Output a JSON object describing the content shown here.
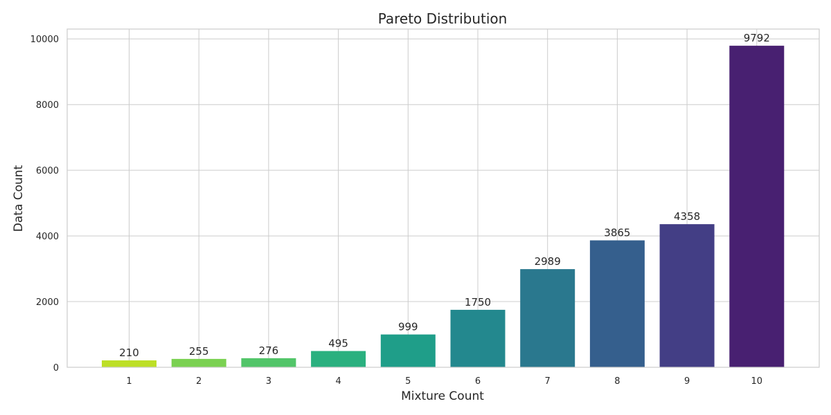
{
  "chart_data": {
    "type": "bar",
    "title": "Pareto Distribution",
    "xlabel": "Mixture Count",
    "ylabel": "Data Count",
    "categories": [
      "1",
      "2",
      "3",
      "4",
      "5",
      "6",
      "7",
      "8",
      "9",
      "10"
    ],
    "values": [
      210,
      255,
      276,
      495,
      999,
      1750,
      2989,
      3865,
      4358,
      9792
    ],
    "colors": [
      "#bddf26",
      "#7ad151",
      "#52c569",
      "#2ab07f",
      "#1f9e89",
      "#23888e",
      "#2a788e",
      "#355f8d",
      "#433e85",
      "#482071"
    ],
    "ylim": [
      0,
      10300
    ],
    "yticks": [
      0,
      2000,
      4000,
      6000,
      8000,
      10000
    ],
    "grid": true,
    "data_labels": true
  }
}
